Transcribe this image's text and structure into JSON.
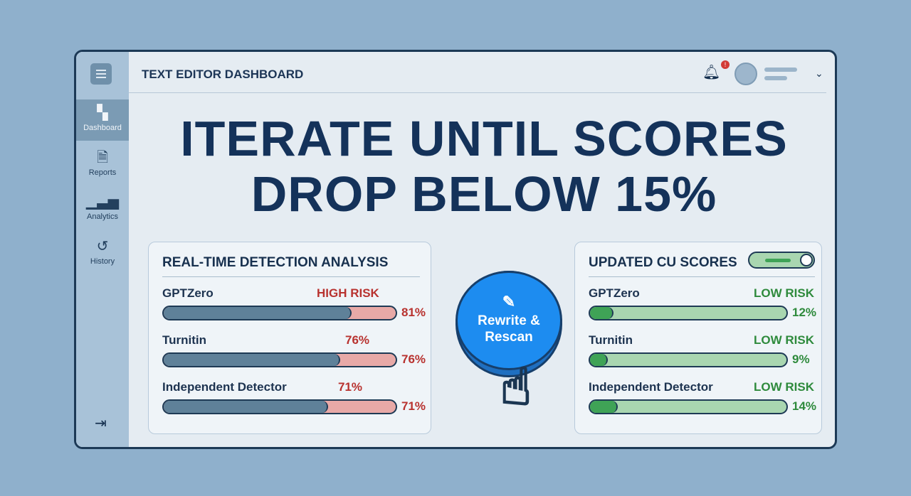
{
  "header": {
    "title": "TEXT EDITOR DASHBOARD",
    "notification_count": "!"
  },
  "sidebar": {
    "items": [
      {
        "label": "Dashboard",
        "icon": "dashboard-icon",
        "active": true
      },
      {
        "label": "Reports",
        "icon": "document-icon"
      },
      {
        "label": "Analytics",
        "icon": "bar-chart-icon"
      },
      {
        "label": "History",
        "icon": "history-icon"
      }
    ]
  },
  "headline": {
    "line1": "ITERATE UNTIL SCORES",
    "line2": "DROP BELOW 15%"
  },
  "left_card": {
    "title": "REAL-TIME DETECTION ANALYSIS",
    "rows": [
      {
        "name": "GPTZero",
        "tag": "HIGH RISK",
        "value": 81,
        "label": "81%"
      },
      {
        "name": "Turnitin",
        "tag": "76%",
        "value": 76,
        "label": "76%"
      },
      {
        "name": "Independent Detector",
        "tag": "71%",
        "value": 71,
        "label": "71%"
      }
    ]
  },
  "action_button": {
    "line1": "Rewrite &",
    "line2": "Rescan"
  },
  "right_card": {
    "title": "UPDATED CU SCORES",
    "toggle_on": true,
    "rows": [
      {
        "name": "GPTZero",
        "tag": "LOW RISK",
        "value": 12,
        "label": "12%"
      },
      {
        "name": "Turnitin",
        "tag": "LOW RISK",
        "value": 9,
        "label": "9%"
      },
      {
        "name": "Independent Detector",
        "tag": "LOW RISK",
        "value": 14,
        "label": "14%"
      }
    ]
  },
  "colors": {
    "background": "#8fb0cc",
    "navy": "#14325a",
    "high_risk": "#b8322f",
    "low_risk": "#2e8a3c",
    "button": "#1d8cf0",
    "bar_high": "#5f8199",
    "bar_high_track": "#e8a9a7",
    "bar_low": "#3fa356",
    "bar_low_track": "#a9d6b0"
  }
}
